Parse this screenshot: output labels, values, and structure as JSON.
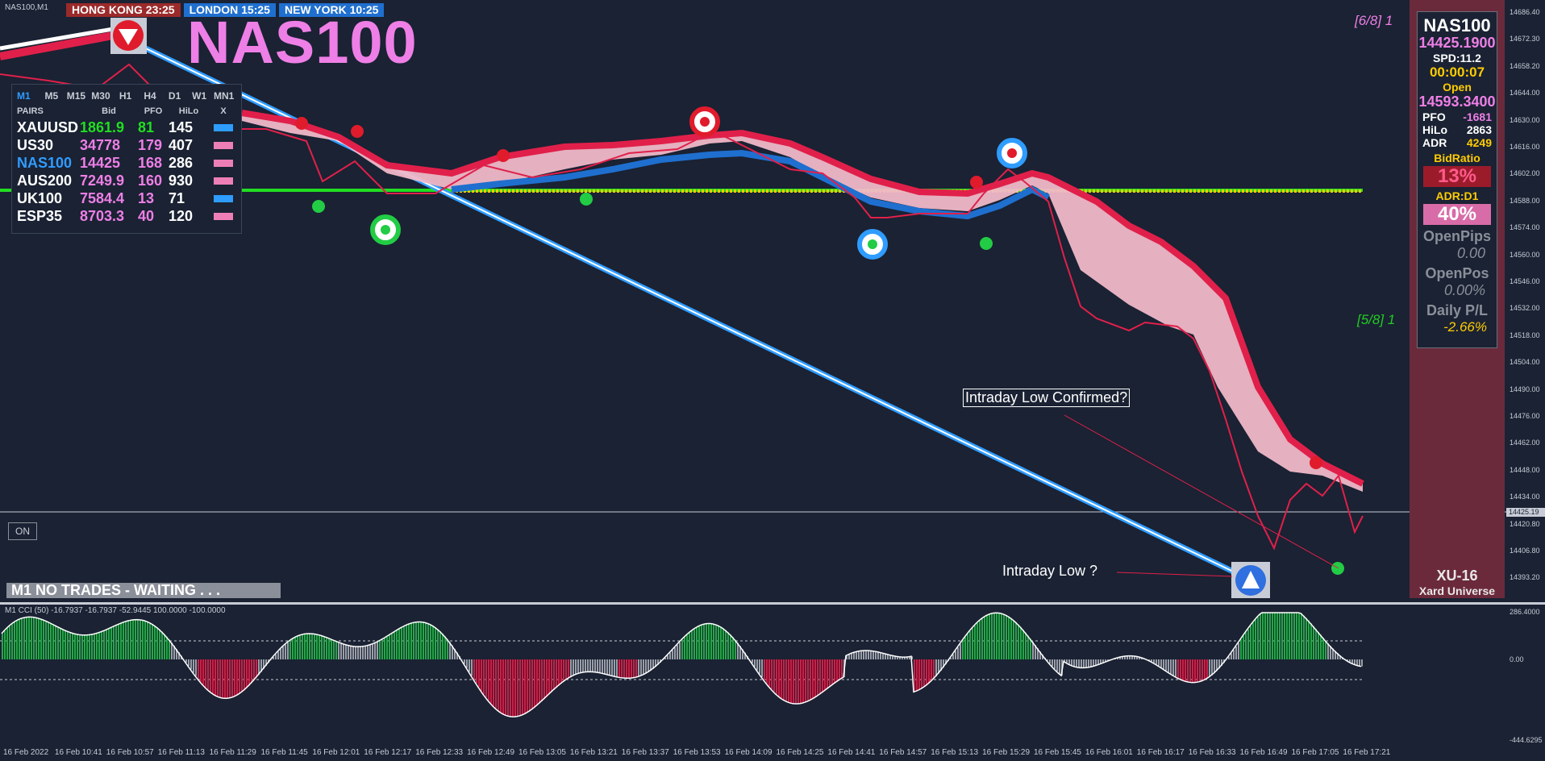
{
  "window": {
    "symbol_label": "NAS100,M1"
  },
  "clocks": [
    {
      "label": "HONG KONG 23:25"
    },
    {
      "label": "LONDON  15:25"
    },
    {
      "label": "NEW YORK  10:25"
    }
  ],
  "title": "NAS100",
  "pairs_panel": {
    "timeframes": [
      "M1",
      "M5",
      "M15",
      "M30",
      "H1",
      "H4",
      "D1",
      "W1",
      "MN1"
    ],
    "headers": [
      "PAIRS",
      "Bid",
      "PFO",
      "HiLo",
      "X"
    ],
    "rows": [
      {
        "pair": "XAUUSD",
        "bid": "1861.9",
        "pfo": "81",
        "hilo": "145",
        "color": "#2f9cff",
        "bid_color": "#22dd22",
        "pfo_color": "#22dd22"
      },
      {
        "pair": "US30",
        "bid": "34778",
        "pfo": "179",
        "hilo": "407",
        "color": "#ee7fb6",
        "bid_color": "#ee7fe6",
        "pfo_color": "#ee7fe6"
      },
      {
        "pair": "NAS100",
        "bid": "14425",
        "pfo": "168",
        "hilo": "286",
        "color": "#ee7fb6",
        "bid_color": "#ee7fe6",
        "pfo_color": "#ee7fe6",
        "pair_color": "#2f9cff"
      },
      {
        "pair": "AUS200",
        "bid": "7249.9",
        "pfo": "160",
        "hilo": "930",
        "color": "#ee7fb6",
        "bid_color": "#ee7fe6",
        "pfo_color": "#ee7fe6"
      },
      {
        "pair": "UK100",
        "bid": "7584.4",
        "pfo": "13",
        "hilo": "71",
        "color": "#2f9cff",
        "bid_color": "#ee7fe6",
        "pfo_color": "#ee7fe6"
      },
      {
        "pair": "ESP35",
        "bid": "8703.3",
        "pfo": "40",
        "hilo": "120",
        "color": "#ee7fb6",
        "bid_color": "#ee7fe6",
        "pfo_color": "#ee7fe6"
      }
    ]
  },
  "on_button": "ON",
  "status_bar": "M1  NO TRADES - WAITING . . .",
  "annotations": {
    "confirmed": "Intraday Low Confirmed?",
    "low": "Intraday Low ?"
  },
  "levels": {
    "top": "[6/8] 1",
    "mid": "[5/8] 1"
  },
  "side_panel": {
    "symbol": "NAS100",
    "price": "14425.1900",
    "spread": "SPD:11.2",
    "timer": "00:00:07",
    "open_label": "Open",
    "open_value": "14593.3400",
    "pfo_label": "PFO",
    "pfo_value": "-1681",
    "hilo_label": "HiLo",
    "hilo_value": "2863",
    "adr_label": "ADR",
    "adr_value": "4249",
    "bidratio_label": "BidRatio",
    "bidratio_value": "13%",
    "adrd1_label": "ADR:D1",
    "adrd1_value": "40%",
    "openpips_label": "OpenPips",
    "openpips_value": "0.00",
    "openpos_label": "OpenPos",
    "openpos_value": "0.00%",
    "dpl_label": "Daily P/L",
    "dpl_value": "-2.66%"
  },
  "brand": {
    "line1": "XU-16",
    "line2": "Xard Universe"
  },
  "price_axis": {
    "ticks": [
      "14686.40",
      "14672.30",
      "14658.20",
      "14644.00",
      "14630.00",
      "14616.00",
      "14602.00",
      "14588.00",
      "14574.00",
      "14560.00",
      "14546.00",
      "14532.00",
      "14518.00",
      "14504.00",
      "14490.00",
      "14476.00",
      "14462.00",
      "14448.00",
      "14434.00",
      "14420.80",
      "14406.80",
      "14393.20"
    ],
    "current": "14425.19",
    "cci_ticks": [
      "286.4000",
      "0.00",
      "-444.6295"
    ]
  },
  "cci_label": "M1  CCI  (50) -16.7937 -16.7937 -52.9445 100.0000 -100.0000",
  "time_axis": [
    "16 Feb 2022",
    "16 Feb 10:41",
    "16 Feb 10:57",
    "16 Feb 11:13",
    "16 Feb 11:29",
    "16 Feb 11:45",
    "16 Feb 12:01",
    "16 Feb 12:17",
    "16 Feb 12:33",
    "16 Feb 12:49",
    "16 Feb 13:05",
    "16 Feb 13:21",
    "16 Feb 13:37",
    "16 Feb 13:53",
    "16 Feb 14:09",
    "16 Feb 14:25",
    "16 Feb 14:41",
    "16 Feb 14:57",
    "16 Feb 15:13",
    "16 Feb 15:29",
    "16 Feb 15:45",
    "16 Feb 16:01",
    "16 Feb 16:17",
    "16 Feb 16:33",
    "16 Feb 16:49",
    "16 Feb 17:05",
    "16 Feb 17:21"
  ],
  "colors": {
    "background": "#1a2233",
    "bear_band": "#e0204a",
    "band_fill": "#f0b8c8",
    "bull_band": "#1f6fcf",
    "support_line": "#22dd22",
    "resistance_line": "#ffcc00",
    "trend_line": "#2f9cff"
  }
}
